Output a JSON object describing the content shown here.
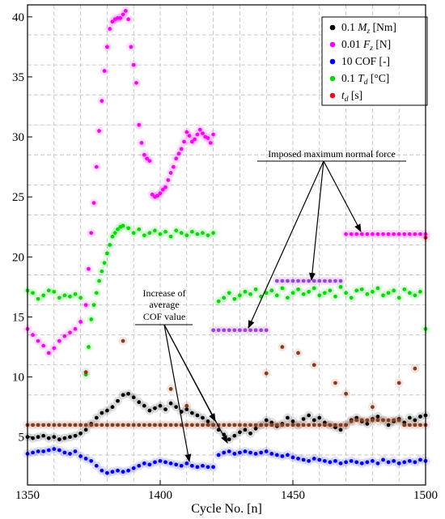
{
  "chart_data": {
    "type": "scatter",
    "title": "",
    "xlabel": "Cycle No. [n]",
    "ylabel": "",
    "xlim": [
      1350,
      1500
    ],
    "ylim": [
      1,
      41
    ],
    "xticks": [
      1350,
      1400,
      1450,
      1500
    ],
    "yticks": [
      5,
      10,
      15,
      20,
      25,
      30,
      35,
      40
    ],
    "grid": true,
    "legend_position": "top-right",
    "legend": [
      {
        "label": "0.1 M_z [Nm]",
        "main": "0.1 ",
        "italic": "M",
        "sub": "z",
        "rest": " [Nm]",
        "color": "#000000"
      },
      {
        "label": "0.01 F_z [N]",
        "main": "0.01 ",
        "italic": "F",
        "sub": "z",
        "rest": " [N]",
        "color": "#ff00ff"
      },
      {
        "label": "10 COF [-]",
        "main": "10 COF [-]",
        "italic": "",
        "sub": "",
        "rest": "",
        "color": "#0000ff"
      },
      {
        "label": "0.1 T_d [°C]",
        "main": "0.1 ",
        "italic": "T",
        "sub": "d",
        "rest": " [°C]",
        "color": "#00dd00"
      },
      {
        "label": "t_d [s]",
        "main": "",
        "italic": "t",
        "sub": "d",
        "rest": " [s]",
        "color": "#ee1111"
      }
    ],
    "annotations": [
      {
        "text": "Imposed maximum normal force"
      },
      {
        "lines": [
          "Increase of",
          "average",
          "COF value"
        ]
      }
    ],
    "series": [
      {
        "name": "0.1 M_z [Nm]",
        "color": "#000000",
        "x": [
          1350,
          1352,
          1354,
          1356,
          1358,
          1360,
          1362,
          1364,
          1366,
          1368,
          1370,
          1372,
          1374,
          1376,
          1378,
          1380,
          1382,
          1384,
          1386,
          1388,
          1390,
          1392,
          1394,
          1396,
          1398,
          1400,
          1402,
          1404,
          1406,
          1408,
          1410,
          1412,
          1414,
          1416,
          1418,
          1420,
          1422,
          1424,
          1426,
          1428,
          1430,
          1432,
          1434,
          1436,
          1438,
          1440,
          1442,
          1444,
          1446,
          1448,
          1450,
          1452,
          1454,
          1456,
          1458,
          1460,
          1462,
          1464,
          1466,
          1468,
          1470,
          1472,
          1474,
          1476,
          1478,
          1480,
          1482,
          1484,
          1486,
          1488,
          1490,
          1492,
          1494,
          1496,
          1498,
          1500
        ],
        "y": [
          5.0,
          4.9,
          5.0,
          5.1,
          4.9,
          5.0,
          4.8,
          4.9,
          5.0,
          5.1,
          5.3,
          5.6,
          6.1,
          6.6,
          7.0,
          7.2,
          7.5,
          8.0,
          8.5,
          8.6,
          8.3,
          7.9,
          7.6,
          7.2,
          7.4,
          7.6,
          7.3,
          7.8,
          7.5,
          7.1,
          7.3,
          7.0,
          6.8,
          6.6,
          6.3,
          6.0,
          5.6,
          5.2,
          4.8,
          5.1,
          5.4,
          5.6,
          5.3,
          5.7,
          6.0,
          6.4,
          6.2,
          5.9,
          6.1,
          6.6,
          6.3,
          6.0,
          6.5,
          6.8,
          6.4,
          6.6,
          6.2,
          6.0,
          5.8,
          5.6,
          6.0,
          6.4,
          6.6,
          6.3,
          6.1,
          6.5,
          6.7,
          6.4,
          6.0,
          6.3,
          6.5,
          6.2,
          6.6,
          6.4,
          6.7,
          6.8
        ]
      },
      {
        "name": "0.01 F_z [N]",
        "color": "#ff00ff",
        "x": [
          1350,
          1352,
          1354,
          1356,
          1358,
          1360,
          1362,
          1364,
          1366,
          1368,
          1370,
          1372,
          1373,
          1374,
          1375,
          1376,
          1377,
          1378,
          1379,
          1380,
          1381,
          1382,
          1383,
          1384,
          1385,
          1386,
          1387,
          1388,
          1389,
          1390,
          1391,
          1392,
          1393,
          1394,
          1395,
          1396,
          1397,
          1398,
          1399,
          1400,
          1401,
          1402,
          1403,
          1404,
          1405,
          1406,
          1407,
          1408,
          1409,
          1410,
          1411,
          1412,
          1413,
          1414,
          1415,
          1416,
          1417,
          1418,
          1419,
          1420,
          1470,
          1472,
          1474,
          1476,
          1478,
          1480,
          1482,
          1484,
          1486,
          1488,
          1490,
          1492,
          1494,
          1496,
          1498,
          1500
        ],
        "y": [
          14.0,
          13.5,
          13.0,
          12.6,
          12.0,
          12.4,
          13.0,
          13.4,
          13.7,
          14.0,
          14.6,
          16.0,
          19.0,
          22.0,
          24.5,
          27.5,
          30.5,
          33.0,
          35.5,
          37.5,
          39.0,
          39.6,
          39.8,
          39.9,
          39.9,
          40.2,
          40.5,
          39.8,
          37.5,
          36.0,
          34.5,
          31.0,
          29.5,
          28.5,
          28.2,
          28.0,
          25.2,
          25.0,
          25.1,
          25.3,
          25.6,
          25.8,
          26.4,
          27.0,
          27.5,
          28.2,
          28.6,
          29.0,
          29.6,
          30.4,
          30.1,
          29.6,
          29.8,
          30.2,
          30.6,
          30.3,
          30.0,
          29.9,
          29.5,
          30.2,
          21.9,
          21.9,
          21.9,
          21.9,
          21.9,
          21.9,
          21.9,
          21.9,
          21.9,
          21.9,
          21.9,
          21.9,
          21.9,
          21.9,
          21.9,
          21.9
        ]
      },
      {
        "name": "10 COF [-]",
        "color": "#0000ff",
        "x": [
          1350,
          1352,
          1354,
          1356,
          1358,
          1360,
          1362,
          1364,
          1366,
          1368,
          1370,
          1372,
          1374,
          1376,
          1378,
          1380,
          1382,
          1384,
          1386,
          1388,
          1390,
          1392,
          1394,
          1396,
          1398,
          1400,
          1402,
          1404,
          1406,
          1408,
          1410,
          1412,
          1414,
          1416,
          1418,
          1420,
          1422,
          1424,
          1426,
          1428,
          1430,
          1432,
          1434,
          1436,
          1438,
          1440,
          1442,
          1444,
          1446,
          1448,
          1450,
          1452,
          1454,
          1456,
          1458,
          1460,
          1462,
          1464,
          1466,
          1468,
          1470,
          1472,
          1474,
          1476,
          1478,
          1480,
          1482,
          1484,
          1486,
          1488,
          1490,
          1492,
          1494,
          1496,
          1498,
          1500
        ],
        "y": [
          3.6,
          3.7,
          3.8,
          3.8,
          3.9,
          4.0,
          3.9,
          3.7,
          3.6,
          3.8,
          3.4,
          3.2,
          3.0,
          2.6,
          2.2,
          2.0,
          2.1,
          2.2,
          2.1,
          2.2,
          2.4,
          2.6,
          2.8,
          2.7,
          2.9,
          3.0,
          2.9,
          2.8,
          2.7,
          2.6,
          2.8,
          2.6,
          2.5,
          2.6,
          2.5,
          2.5,
          3.5,
          3.7,
          3.8,
          3.6,
          3.7,
          3.8,
          3.7,
          3.6,
          3.7,
          3.8,
          3.6,
          3.5,
          3.4,
          3.5,
          3.3,
          3.2,
          3.1,
          3.0,
          3.2,
          3.1,
          3.0,
          2.9,
          3.0,
          2.8,
          2.9,
          3.0,
          2.9,
          2.8,
          2.9,
          3.0,
          2.8,
          3.1,
          2.9,
          3.0,
          2.8,
          2.9,
          3.0,
          2.9,
          3.1,
          3.0
        ]
      },
      {
        "name": "0.1 T_d [°C]",
        "color": "#00dd00",
        "x": [
          1350,
          1352,
          1354,
          1356,
          1358,
          1360,
          1362,
          1364,
          1366,
          1368,
          1370,
          1372,
          1373,
          1374,
          1375,
          1376,
          1377,
          1378,
          1379,
          1380,
          1381,
          1382,
          1383,
          1384,
          1385,
          1386,
          1388,
          1390,
          1392,
          1394,
          1396,
          1398,
          1400,
          1402,
          1404,
          1406,
          1408,
          1410,
          1412,
          1414,
          1416,
          1418,
          1420,
          1422,
          1424,
          1426,
          1428,
          1430,
          1432,
          1434,
          1436,
          1438,
          1440,
          1442,
          1444,
          1446,
          1448,
          1450,
          1452,
          1454,
          1456,
          1458,
          1460,
          1462,
          1464,
          1466,
          1468,
          1470,
          1472,
          1474,
          1476,
          1478,
          1480,
          1482,
          1484,
          1486,
          1488,
          1490,
          1492,
          1494,
          1496,
          1498,
          1500
        ],
        "y": [
          17.2,
          17.0,
          16.5,
          16.8,
          17.2,
          17.1,
          16.6,
          16.8,
          16.7,
          16.9,
          16.6,
          10.2,
          12.5,
          14.8,
          16.0,
          17.0,
          18.0,
          18.8,
          19.5,
          20.3,
          21.0,
          21.7,
          22.0,
          22.3,
          22.5,
          22.6,
          22.4,
          22.0,
          22.3,
          21.8,
          22.0,
          22.2,
          21.9,
          22.1,
          21.7,
          22.2,
          22.0,
          21.8,
          22.1,
          21.9,
          22.0,
          21.8,
          22.0,
          16.3,
          16.6,
          17.0,
          16.5,
          16.8,
          17.1,
          16.9,
          17.3,
          16.7,
          17.0,
          17.2,
          16.8,
          17.4,
          16.6,
          17.0,
          17.3,
          16.9,
          17.1,
          17.4,
          16.8,
          17.0,
          17.2,
          16.7,
          17.5,
          17.0,
          16.6,
          17.2,
          17.3,
          16.9,
          17.1,
          17.4,
          16.8,
          17.0,
          17.2,
          16.6,
          17.3,
          17.0,
          16.8,
          17.1,
          14.0
        ]
      },
      {
        "name": "t_d [s]",
        "color": "#ee1111",
        "x": [
          1500
        ],
        "y": [
          21.6
        ]
      },
      {
        "name": "",
        "color": "#8b3a1a",
        "x": [
          1350,
          1352,
          1354,
          1356,
          1358,
          1360,
          1362,
          1364,
          1366,
          1368,
          1370,
          1372,
          1374,
          1376,
          1378,
          1380,
          1382,
          1384,
          1386,
          1388,
          1390,
          1392,
          1394,
          1396,
          1398,
          1400,
          1402,
          1404,
          1406,
          1408,
          1410,
          1412,
          1414,
          1416,
          1418,
          1420,
          1422,
          1424,
          1426,
          1428,
          1430,
          1432,
          1434,
          1436,
          1438,
          1440,
          1442,
          1444,
          1446,
          1448,
          1450,
          1452,
          1454,
          1456,
          1458,
          1460,
          1462,
          1464,
          1466,
          1468,
          1470,
          1472,
          1474,
          1476,
          1478,
          1480,
          1482,
          1484,
          1486,
          1488,
          1490,
          1492,
          1494,
          1496,
          1498,
          1500
        ],
        "y": [
          6.0,
          6.0,
          6.0,
          6.0,
          6.0,
          6.0,
          6.0,
          6.0,
          6.0,
          6.0,
          6.0,
          6.0,
          6.0,
          6.0,
          6.0,
          6.0,
          6.0,
          6.0,
          6.0,
          6.0,
          6.0,
          6.0,
          6.0,
          6.0,
          6.0,
          6.0,
          6.0,
          6.0,
          6.0,
          6.0,
          6.0,
          6.0,
          6.0,
          6.0,
          6.0,
          6.0,
          6.0,
          6.0,
          6.0,
          6.0,
          6.0,
          6.0,
          6.0,
          6.0,
          6.0,
          6.0,
          6.0,
          6.0,
          6.0,
          6.0,
          6.0,
          6.0,
          6.0,
          6.0,
          6.0,
          6.0,
          6.0,
          6.0,
          6.0,
          6.0,
          6.0,
          6.3,
          6.4,
          6.4,
          6.4,
          6.4,
          6.4,
          6.4,
          6.4,
          6.4,
          6.4,
          6.0,
          6.0,
          6.0,
          6.0,
          6.0
        ]
      },
      {
        "name": "",
        "color": "#8b3a1a",
        "x": [
          1372,
          1386,
          1404,
          1410,
          1440,
          1446,
          1452,
          1458,
          1466,
          1470,
          1480,
          1490,
          1496
        ],
        "y": [
          10.4,
          13.0,
          9.0,
          7.6,
          10.3,
          12.5,
          12.0,
          11.0,
          9.5,
          8.6,
          7.5,
          9.5,
          10.7
        ]
      },
      {
        "name": "",
        "color": "#a040e0",
        "x": [
          1420,
          1422,
          1424,
          1426,
          1428,
          1430,
          1432,
          1434,
          1436,
          1438,
          1440,
          1444,
          1446,
          1448,
          1450,
          1452,
          1454,
          1456,
          1458,
          1460,
          1462,
          1464,
          1466,
          1468
        ],
        "y": [
          13.9,
          13.9,
          13.9,
          13.9,
          13.9,
          13.9,
          13.9,
          13.9,
          13.9,
          13.9,
          13.9,
          18.0,
          18.0,
          18.0,
          18.0,
          18.0,
          18.0,
          18.0,
          18.0,
          18.0,
          18.0,
          18.0,
          18.0,
          18.0
        ]
      }
    ]
  }
}
